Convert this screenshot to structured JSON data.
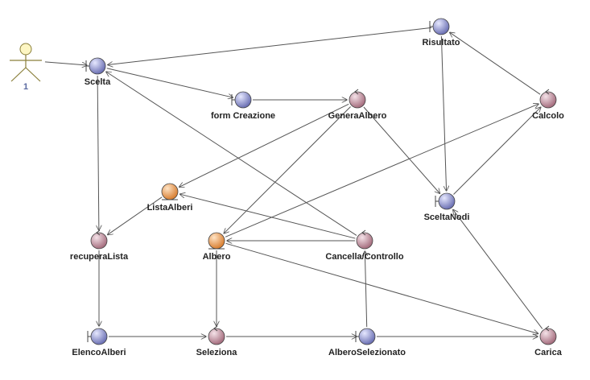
{
  "diagram": {
    "type": "robustness-diagram",
    "actor": {
      "label": "1"
    },
    "nodes": [
      {
        "id": "scelta",
        "label": "Scelta",
        "kind": "boundary"
      },
      {
        "id": "risultato",
        "label": "Risultato",
        "kind": "boundary"
      },
      {
        "id": "form_creazione",
        "label": "form Creazione",
        "kind": "boundary"
      },
      {
        "id": "genera_albero",
        "label": "GeneraAlbero",
        "kind": "control"
      },
      {
        "id": "calcolo",
        "label": "Calcolo",
        "kind": "control"
      },
      {
        "id": "lista_alberi",
        "label": "ListaAlberi",
        "kind": "entity"
      },
      {
        "id": "scelta_nodi",
        "label": "SceltaNodi",
        "kind": "boundary"
      },
      {
        "id": "recupera_lista",
        "label": "recuperaLista",
        "kind": "control"
      },
      {
        "id": "albero",
        "label": "Albero",
        "kind": "entity"
      },
      {
        "id": "cancella_controllo",
        "label": "Cancella/Controllo",
        "kind": "control"
      },
      {
        "id": "elenco_alberi",
        "label": "ElencoAlberi",
        "kind": "boundary"
      },
      {
        "id": "seleziona",
        "label": "Seleziona",
        "kind": "control"
      },
      {
        "id": "albero_selezionato",
        "label": "AlberoSelezionato",
        "kind": "boundary"
      },
      {
        "id": "carica",
        "label": "Carica",
        "kind": "control"
      }
    ],
    "edges": [
      {
        "from": "actor",
        "to": "scelta"
      },
      {
        "from": "risultato",
        "to": "scelta"
      },
      {
        "from": "scelta",
        "to": "form_creazione"
      },
      {
        "from": "scelta",
        "to": "recupera_lista"
      },
      {
        "from": "form_creazione",
        "to": "genera_albero"
      },
      {
        "from": "genera_albero",
        "to": "lista_alberi"
      },
      {
        "from": "genera_albero",
        "to": "albero"
      },
      {
        "from": "genera_albero",
        "to": "scelta_nodi"
      },
      {
        "from": "risultato",
        "to": "scelta_nodi"
      },
      {
        "from": "calcolo",
        "to": "risultato"
      },
      {
        "from": "scelta_nodi",
        "to": "calcolo"
      },
      {
        "from": "albero",
        "to": "calcolo"
      },
      {
        "from": "lista_alberi",
        "to": "recupera_lista"
      },
      {
        "from": "cancella_controllo",
        "to": "scelta"
      },
      {
        "from": "cancella_controllo",
        "to": "lista_alberi"
      },
      {
        "from": "cancella_controllo",
        "to": "albero"
      },
      {
        "from": "recupera_lista",
        "to": "elenco_alberi"
      },
      {
        "from": "albero",
        "to": "seleziona"
      },
      {
        "from": "elenco_alberi",
        "to": "seleziona"
      },
      {
        "from": "seleziona",
        "to": "albero_selezionato"
      },
      {
        "from": "albero_selezionato",
        "to": "cancella_controllo"
      },
      {
        "from": "albero_selezionato",
        "to": "carica"
      },
      {
        "from": "albero",
        "to": "carica"
      },
      {
        "from": "carica",
        "to": "scelta_nodi"
      }
    ],
    "colors": {
      "boundary": "#8a8fc8",
      "control": "#c79aa8",
      "entity": "#e8a060",
      "actor": "#fdf6c3",
      "line": "#555555"
    }
  }
}
